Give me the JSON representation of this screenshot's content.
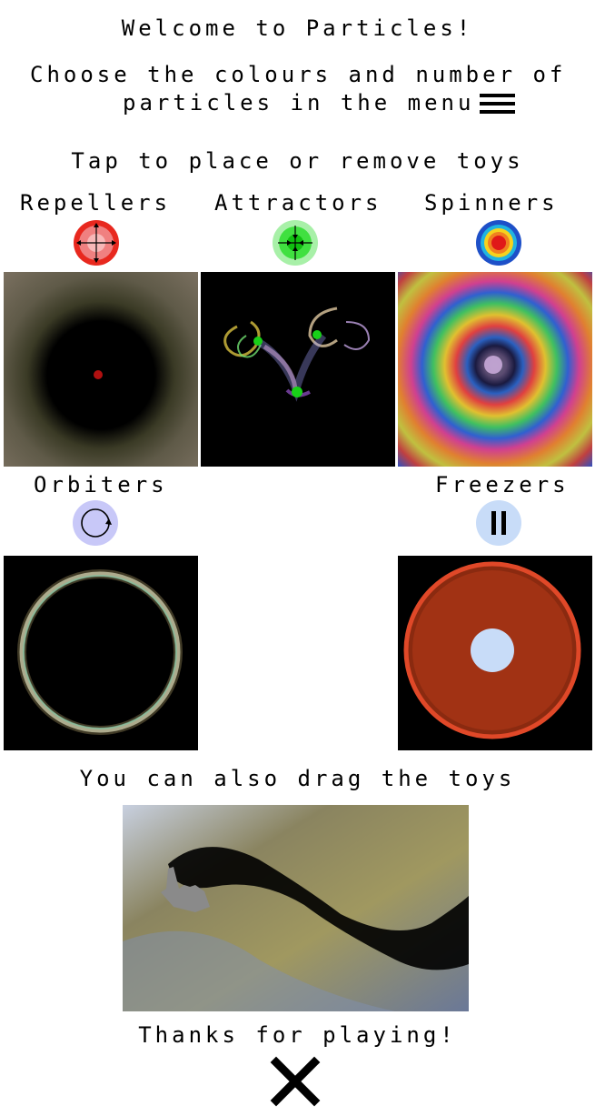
{
  "intro": {
    "welcome": "Welcome to Particles!",
    "choose_line1": "Choose the colours and number of",
    "choose_line2": "particles in the menu",
    "menu_icon": "hamburger-menu-icon",
    "tap_text": "Tap to place or remove toys"
  },
  "toys": {
    "repellers": {
      "label": "Repellers",
      "icon": "repeller-icon",
      "color": "#e8281e"
    },
    "attractors": {
      "label": "Attractors",
      "icon": "attractor-icon",
      "color": "#1fdc1f"
    },
    "spinners": {
      "label": "Spinners",
      "icon": "spinner-icon",
      "color": "#f5d21e"
    },
    "orbiters": {
      "label": "Orbiters",
      "icon": "orbiter-icon",
      "color": "#c8c8f8"
    },
    "freezers": {
      "label": "Freezers",
      "icon": "freezer-icon",
      "color": "#c8dcf8"
    }
  },
  "drag": {
    "text": "You can also drag the toys",
    "hand_icon": "hand-pointer-icon"
  },
  "footer": {
    "thanks": "Thanks for playing!",
    "close_icon": "close-icon"
  }
}
